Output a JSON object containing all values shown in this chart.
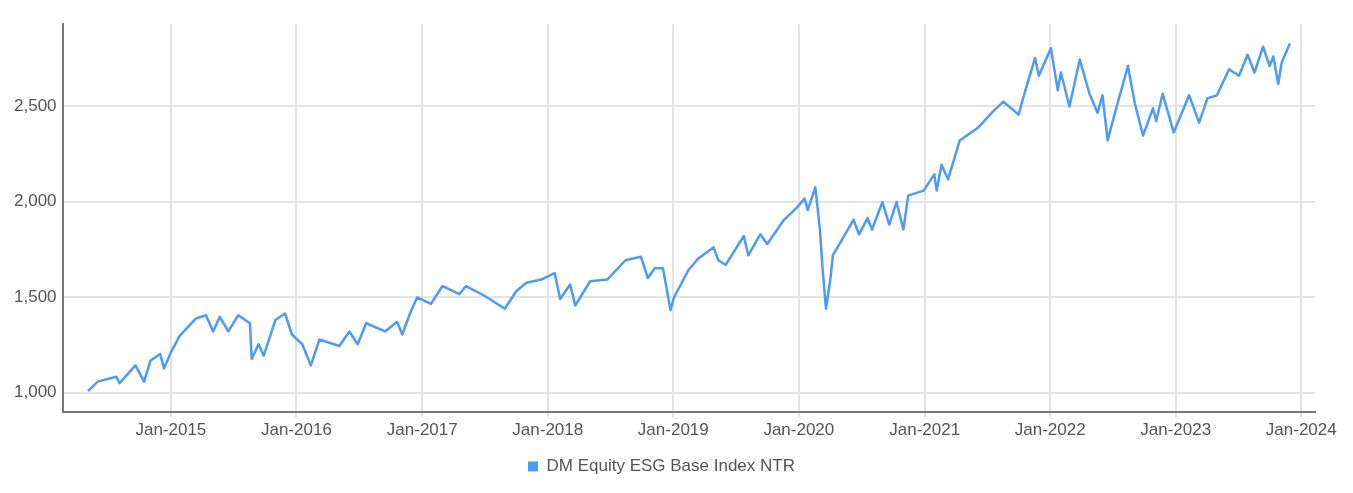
{
  "chart_data": {
    "type": "line",
    "series": [
      {
        "name": "DM Equity ESG Base Index NTR",
        "color": "#4e9af7",
        "x": [
          "2014-05-05",
          "2014-06-02",
          "2014-07-26",
          "2014-08-05",
          "2014-09-20",
          "2014-10-15",
          "2014-11-03",
          "2014-12-01",
          "2014-12-12",
          "2015-01-01",
          "2015-01-26",
          "2015-03-15",
          "2015-04-13",
          "2015-05-04",
          "2015-05-23",
          "2015-06-17",
          "2015-07-16",
          "2015-08-19",
          "2015-08-24",
          "2015-09-13",
          "2015-09-28",
          "2015-11-01",
          "2015-11-29",
          "2015-12-19",
          "2016-01-18",
          "2016-02-12",
          "2016-03-08",
          "2016-05-05",
          "2016-06-03",
          "2016-06-27",
          "2016-07-22",
          "2016-09-15",
          "2016-10-20",
          "2016-11-04",
          "2016-11-28",
          "2016-12-17",
          "2017-01-26",
          "2017-03-01",
          "2017-04-19",
          "2017-05-08",
          "2017-07-01",
          "2017-08-29",
          "2017-10-02",
          "2017-10-31",
          "2017-12-13",
          "2018-01-21",
          "2018-02-06",
          "2018-03-07",
          "2018-03-22",
          "2018-05-04",
          "2018-06-23",
          "2018-08-15",
          "2018-09-29",
          "2018-10-19",
          "2018-11-08",
          "2018-12-02",
          "2018-12-24",
          "2019-01-03",
          "2019-02-14",
          "2019-03-15",
          "2019-04-28",
          "2019-05-12",
          "2019-06-02",
          "2019-07-25",
          "2019-08-07",
          "2019-09-11",
          "2019-10-01",
          "2019-11-19",
          "2019-12-24",
          "2020-01-18",
          "2020-01-27",
          "2020-02-18",
          "2020-03-02",
          "2020-03-10",
          "2020-03-20",
          "2020-04-01",
          "2020-04-09",
          "2020-06-08",
          "2020-06-24",
          "2020-07-19",
          "2020-08-01",
          "2020-08-31",
          "2020-09-20",
          "2020-10-11",
          "2020-10-31",
          "2020-11-14",
          "2020-12-29",
          "2021-01-29",
          "2021-02-05",
          "2021-02-19",
          "2021-03-10",
          "2021-04-13",
          "2021-06-06",
          "2021-07-19",
          "2021-08-18",
          "2021-10-01",
          "2021-10-18",
          "2021-11-18",
          "2021-11-29",
          "2022-01-03",
          "2022-01-23",
          "2022-02-01",
          "2022-02-26",
          "2022-03-28",
          "2022-04-25",
          "2022-05-19",
          "2022-06-02",
          "2022-06-17",
          "2022-07-12",
          "2022-08-15",
          "2022-09-04",
          "2022-09-28",
          "2022-10-27",
          "2022-11-05",
          "2022-11-24",
          "2022-12-26",
          "2023-02-09",
          "2023-03-10",
          "2023-04-03",
          "2023-05-01",
          "2023-06-05",
          "2023-07-04",
          "2023-07-29",
          "2023-08-18",
          "2023-09-12",
          "2023-10-01",
          "2023-10-12",
          "2023-10-26",
          "2023-11-05",
          "2023-11-29"
        ],
        "values": [
          1007,
          1057,
          1083,
          1049,
          1142,
          1057,
          1168,
          1202,
          1126,
          1210,
          1295,
          1388,
          1405,
          1320,
          1397,
          1320,
          1405,
          1363,
          1176,
          1253,
          1193,
          1380,
          1414,
          1304,
          1253,
          1142,
          1278,
          1244,
          1320,
          1253,
          1363,
          1320,
          1371,
          1304,
          1422,
          1498,
          1464,
          1558,
          1515,
          1558,
          1507,
          1439,
          1532,
          1575,
          1592,
          1626,
          1490,
          1566,
          1456,
          1583,
          1592,
          1693,
          1711,
          1600,
          1651,
          1651,
          1431,
          1498,
          1642,
          1702,
          1761,
          1693,
          1668,
          1820,
          1719,
          1829,
          1778,
          1905,
          1965,
          2016,
          1956,
          2075,
          1863,
          1651,
          1439,
          1583,
          1719,
          1905,
          1829,
          1914,
          1854,
          1998,
          1880,
          1998,
          1854,
          2032,
          2058,
          2143,
          2058,
          2194,
          2117,
          2321,
          2389,
          2473,
          2524,
          2456,
          2566,
          2753,
          2660,
          2804,
          2583,
          2677,
          2499,
          2745,
          2566,
          2465,
          2558,
          2321,
          2490,
          2711,
          2516,
          2346,
          2490,
          2422,
          2566,
          2363,
          2558,
          2414,
          2541,
          2558,
          2694,
          2660,
          2770,
          2677,
          2812,
          2711,
          2761,
          2617,
          2728,
          2829
        ]
      }
    ],
    "xlim": [
      "2014-02-20",
      "2024-02-10"
    ],
    "xticks": [
      {
        "value": "2015-01-01",
        "label": "Jan-2015"
      },
      {
        "value": "2016-01-01",
        "label": "Jan-2016"
      },
      {
        "value": "2017-01-01",
        "label": "Jan-2017"
      },
      {
        "value": "2018-01-01",
        "label": "Jan-2018"
      },
      {
        "value": "2019-01-01",
        "label": "Jan-2019"
      },
      {
        "value": "2020-01-01",
        "label": "Jan-2020"
      },
      {
        "value": "2021-01-01",
        "label": "Jan-2021"
      },
      {
        "value": "2022-01-01",
        "label": "Jan-2022"
      },
      {
        "value": "2023-01-01",
        "label": "Jan-2023"
      },
      {
        "value": "2024-01-01",
        "label": "Jan-2024"
      }
    ],
    "ylim": [
      900,
      2930
    ],
    "yticks": [
      {
        "value": 1000,
        "label": "1,000"
      },
      {
        "value": 1500,
        "label": "1,500"
      },
      {
        "value": 2000,
        "label": "2,000"
      },
      {
        "value": 2500,
        "label": "2,500"
      }
    ],
    "grid": true,
    "legend": "bottom",
    "marker": "none",
    "line_style": "solid"
  }
}
